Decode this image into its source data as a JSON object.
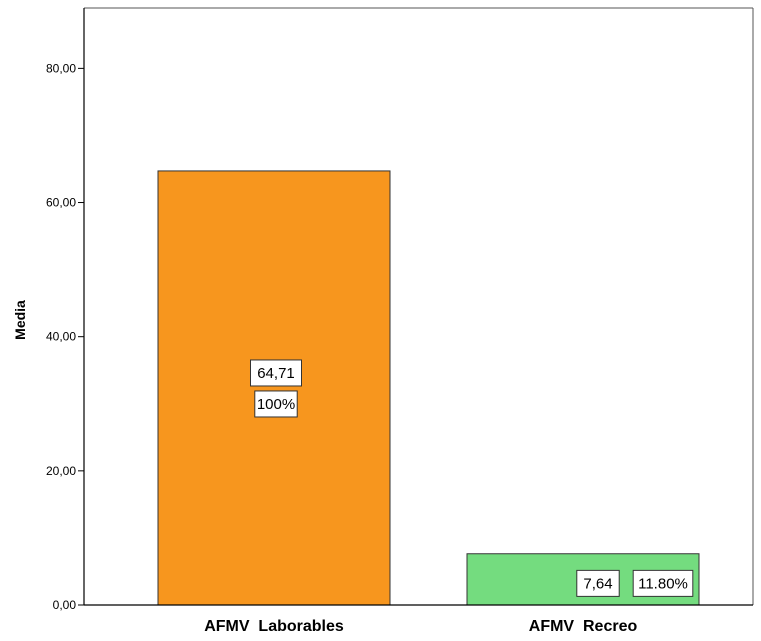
{
  "chart_data": {
    "type": "bar",
    "title": "",
    "xlabel": "",
    "ylabel": "Media",
    "ylim": [
      0,
      89
    ],
    "yticks": [
      0,
      20,
      40,
      60,
      80
    ],
    "ytick_labels": [
      "0,00",
      "20,00",
      "40,00",
      "60,00",
      "80,00"
    ],
    "categories": [
      "AFMV  Laborables",
      "AFMV  Recreo"
    ],
    "values": [
      64.71,
      7.64
    ],
    "value_labels": [
      "64,71",
      "7,64"
    ],
    "percent_labels": [
      "100%",
      "11.80%"
    ],
    "colors": [
      "#f7961e",
      "#74dc7f"
    ],
    "grid": false,
    "legend": "none"
  }
}
